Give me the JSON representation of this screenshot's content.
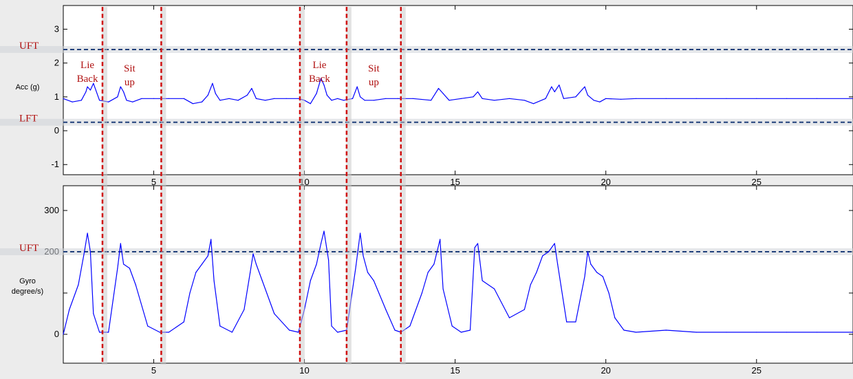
{
  "chart_data": [
    {
      "type": "line",
      "ylabel": "Acc (g)",
      "xlim": [
        2,
        28.2
      ],
      "ylim": [
        -1.3,
        3.7
      ],
      "xticks": [
        5,
        10,
        15,
        20,
        25
      ],
      "yticks": [
        -1,
        0,
        1,
        2,
        3
      ],
      "grid": false,
      "thresholds": [
        {
          "label": "UFT",
          "y": 2.4
        },
        {
          "label": "LFT",
          "y": 0.25
        }
      ],
      "annotations": [
        {
          "lines": [
            "Lie",
            "Back"
          ],
          "x": 2.8,
          "y": 1.85
        },
        {
          "lines": [
            "Sit",
            "up"
          ],
          "x": 4.2,
          "y": 1.75
        },
        {
          "lines": [
            "Lie",
            "Back"
          ],
          "x": 10.5,
          "y": 1.85
        },
        {
          "lines": [
            "Sit",
            "up"
          ],
          "x": 12.3,
          "y": 1.75
        }
      ],
      "series": [
        {
          "color": "#0000ff",
          "x": [
            2.0,
            2.3,
            2.6,
            2.75,
            2.8,
            2.9,
            3.0,
            3.2,
            3.5,
            3.8,
            3.9,
            4.0,
            4.1,
            4.3,
            4.6,
            5.0,
            5.5,
            6.0,
            6.3,
            6.6,
            6.8,
            6.95,
            7.05,
            7.2,
            7.5,
            7.8,
            8.1,
            8.25,
            8.4,
            8.7,
            9.0,
            9.4,
            9.8,
            10.0,
            10.2,
            10.4,
            10.55,
            10.65,
            10.75,
            10.9,
            11.1,
            11.3,
            11.6,
            11.75,
            11.85,
            12.0,
            12.3,
            12.7,
            13.1,
            13.6,
            14.2,
            14.45,
            14.6,
            14.8,
            15.2,
            15.6,
            15.75,
            15.9,
            16.3,
            16.8,
            17.3,
            17.6,
            18.0,
            18.2,
            18.3,
            18.45,
            18.6,
            19.0,
            19.3,
            19.4,
            19.6,
            19.8,
            20.0,
            20.5,
            21.0,
            22.0,
            23.0,
            24.0,
            25.0,
            26.0,
            27.0,
            28.2
          ],
          "y": [
            0.95,
            0.85,
            0.9,
            1.15,
            1.3,
            1.2,
            1.4,
            0.9,
            0.85,
            1.0,
            1.3,
            1.15,
            0.9,
            0.85,
            0.95,
            0.95,
            0.95,
            0.95,
            0.8,
            0.85,
            1.05,
            1.4,
            1.1,
            0.9,
            0.95,
            0.9,
            1.05,
            1.25,
            0.95,
            0.9,
            0.95,
            0.95,
            0.95,
            0.9,
            0.8,
            1.1,
            1.55,
            1.35,
            1.05,
            0.9,
            0.95,
            0.9,
            0.95,
            1.3,
            1.0,
            0.9,
            0.9,
            0.95,
            0.95,
            0.95,
            0.9,
            1.25,
            1.1,
            0.9,
            0.95,
            1.0,
            1.15,
            0.95,
            0.9,
            0.95,
            0.9,
            0.8,
            0.95,
            1.3,
            1.15,
            1.35,
            0.95,
            1.0,
            1.3,
            1.05,
            0.9,
            0.85,
            0.95,
            0.93,
            0.95,
            0.95,
            0.95,
            0.95,
            0.95,
            0.95,
            0.95,
            0.95
          ]
        }
      ]
    },
    {
      "type": "line",
      "ylabel": "Gyro degree/s)",
      "xlim": [
        2,
        28.2
      ],
      "ylim": [
        -70,
        360
      ],
      "xticks": [
        5,
        10,
        15,
        20,
        25
      ],
      "yticks": [
        0,
        100,
        200,
        300
      ],
      "ytick_labels": [
        "0",
        "",
        "200",
        "300"
      ],
      "grid": false,
      "thresholds": [
        {
          "label": "UFT",
          "y": 200
        }
      ],
      "series": [
        {
          "color": "#0000ff",
          "x": [
            2.0,
            2.2,
            2.5,
            2.7,
            2.8,
            2.9,
            3.0,
            3.2,
            3.5,
            3.8,
            3.9,
            4.0,
            4.2,
            4.4,
            4.8,
            5.2,
            5.5,
            6.0,
            6.2,
            6.4,
            6.6,
            6.8,
            6.9,
            7.0,
            7.2,
            7.6,
            8.0,
            8.2,
            8.3,
            8.4,
            8.6,
            9.0,
            9.5,
            9.8,
            10.0,
            10.2,
            10.4,
            10.55,
            10.65,
            10.8,
            10.9,
            11.1,
            11.4,
            11.7,
            11.85,
            11.95,
            12.1,
            12.3,
            12.7,
            13.0,
            13.2,
            13.5,
            13.9,
            14.1,
            14.3,
            14.5,
            14.6,
            14.9,
            15.2,
            15.5,
            15.65,
            15.75,
            15.9,
            16.3,
            16.8,
            17.3,
            17.5,
            17.7,
            17.9,
            18.1,
            18.3,
            18.4,
            18.7,
            19.0,
            19.3,
            19.4,
            19.5,
            19.7,
            19.9,
            20.1,
            20.3,
            20.6,
            21.0,
            22.0,
            23.0,
            24.0,
            25.0,
            26.0,
            27.0,
            28.2
          ],
          "y": [
            0,
            60,
            120,
            200,
            245,
            200,
            50,
            5,
            5,
            160,
            220,
            170,
            160,
            120,
            20,
            5,
            5,
            30,
            100,
            150,
            170,
            190,
            230,
            130,
            20,
            5,
            60,
            150,
            195,
            170,
            130,
            50,
            10,
            5,
            60,
            130,
            170,
            220,
            250,
            180,
            20,
            5,
            10,
            160,
            245,
            190,
            150,
            130,
            60,
            10,
            5,
            20,
            100,
            150,
            170,
            230,
            110,
            20,
            5,
            10,
            210,
            220,
            130,
            110,
            40,
            60,
            120,
            150,
            190,
            200,
            220,
            170,
            30,
            30,
            140,
            200,
            170,
            150,
            140,
            100,
            40,
            10,
            5,
            10,
            5,
            5,
            5,
            5,
            5,
            5
          ]
        }
      ]
    }
  ],
  "markers": {
    "phase_boundaries_x": [
      3.3,
      5.25,
      9.85,
      11.4,
      13.2
    ],
    "threshold_color": "#1f3f7a",
    "marker_color": "#d01010"
  }
}
